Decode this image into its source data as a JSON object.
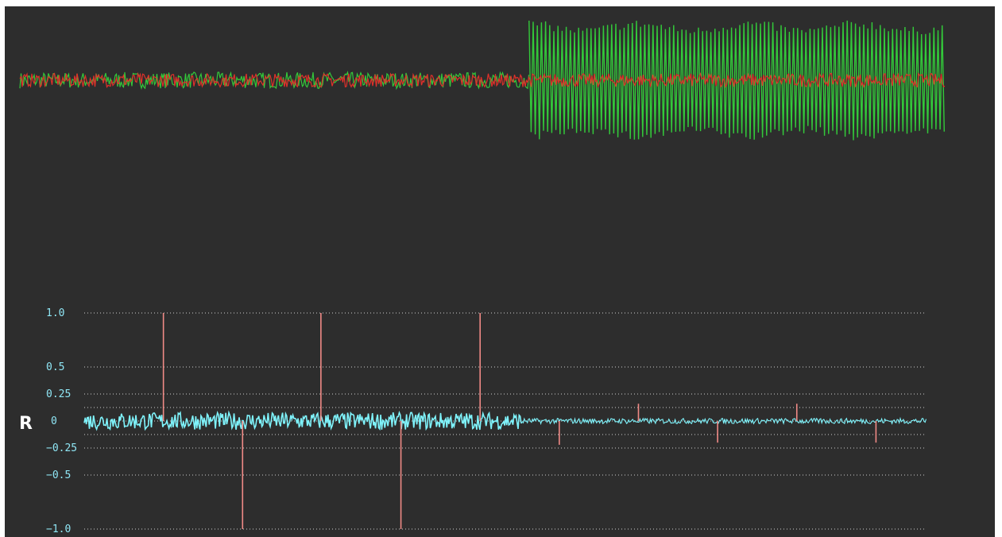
{
  "colors": {
    "background": "#2d2d2d",
    "top_green": "#33c93a",
    "top_red": "#e0302a",
    "bottom_cyan": "#7ff3fb",
    "spikes": "#f08a86",
    "axis_text": "#8fe6f5",
    "grid": "#cfcfcf"
  },
  "channel_label": "R",
  "chart_data": [
    {
      "type": "line",
      "name": "top-waveform",
      "series": [
        {
          "name": "",
          "color": "#33c93a",
          "segments": [
            {
              "x_range": [
                0,
                0.55
              ],
              "amplitude": 0.06,
              "style": "noise"
            },
            {
              "x_range": [
                0.55,
                1.0
              ],
              "amplitude": 0.45,
              "style": "oscillation",
              "envelope_variation": 0.12
            }
          ]
        },
        {
          "name": "",
          "color": "#e0302a",
          "segments": [
            {
              "x_range": [
                0,
                1.0
              ],
              "amplitude": 0.05,
              "style": "noise"
            }
          ]
        }
      ],
      "ylim": [
        -1,
        1
      ],
      "grid": false
    },
    {
      "type": "line",
      "name": "bottom-correlation",
      "yticks": [
        {
          "value": 1.0,
          "label": "1.0"
        },
        {
          "value": 0.5,
          "label": "0.5"
        },
        {
          "value": 0.25,
          "label": "0.25"
        },
        {
          "value": 0.0,
          "label": "0"
        },
        {
          "value": -0.25,
          "label": "−0.25"
        },
        {
          "value": -0.5,
          "label": "−0.5"
        },
        {
          "value": -1.0,
          "label": "−1.0"
        }
      ],
      "extra_grid": [
        0.125,
        -0.125
      ],
      "ylim": [
        -1,
        1
      ],
      "grid": true,
      "series": [
        {
          "name": "",
          "color": "#7ff3fb",
          "segments": [
            {
              "x_range": [
                0,
                0.52
              ],
              "amplitude": 0.08,
              "style": "noise"
            },
            {
              "x_range": [
                0.52,
                1.0
              ],
              "amplitude": 0.025,
              "style": "noise"
            }
          ]
        }
      ],
      "spikes": [
        {
          "x": 0.094,
          "y": 1.0
        },
        {
          "x": 0.188,
          "y": -1.0
        },
        {
          "x": 0.281,
          "y": 1.0
        },
        {
          "x": 0.376,
          "y": -1.0
        },
        {
          "x": 0.47,
          "y": 1.0
        },
        {
          "x": 0.564,
          "y": -0.22
        },
        {
          "x": 0.658,
          "y": 0.16
        },
        {
          "x": 0.752,
          "y": -0.2
        },
        {
          "x": 0.846,
          "y": 0.16
        },
        {
          "x": 0.94,
          "y": -0.2
        }
      ]
    }
  ]
}
